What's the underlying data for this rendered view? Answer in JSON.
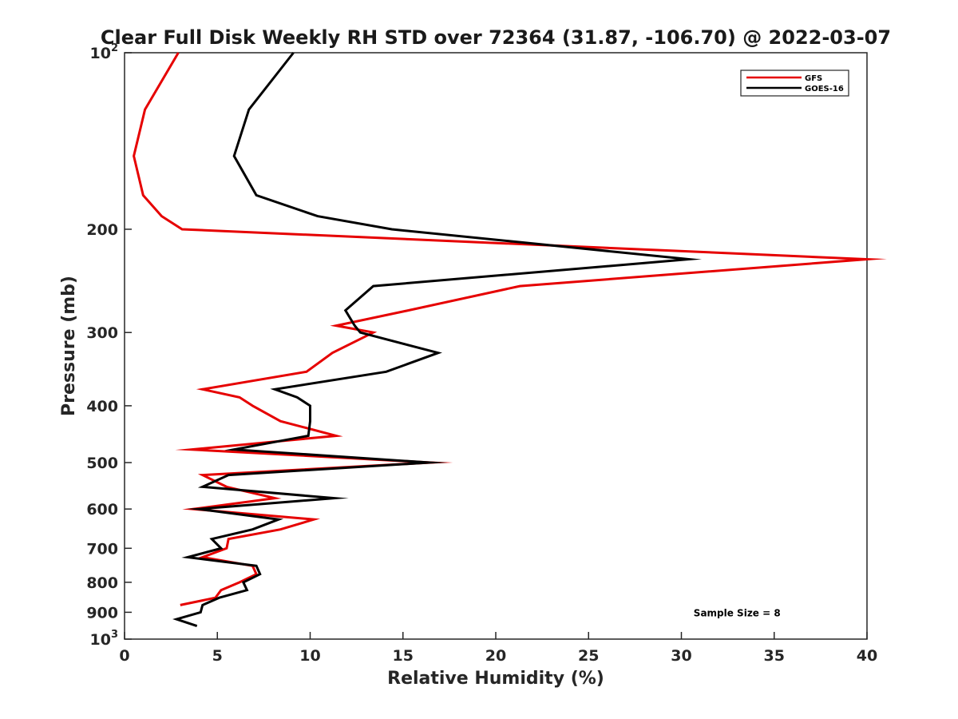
{
  "chart_data": {
    "type": "line",
    "title": "Clear Full Disk Weekly RH STD over 72364 (31.87, -106.70) @ 2022-03-07",
    "xlabel": "Relative Humidity (%)",
    "ylabel": "Pressure (mb)",
    "xlim": [
      0,
      40
    ],
    "ylim": [
      100,
      1000
    ],
    "yscale": "log",
    "y_reversed": true,
    "grid": false,
    "legend_position": "top-right",
    "x_ticks": [
      "0",
      "5",
      "10",
      "15",
      "20",
      "25",
      "30",
      "35",
      "40"
    ],
    "y_ticks": [
      {
        "value": 100,
        "base": "10",
        "exp": "2"
      },
      {
        "value": 200,
        "label": "200"
      },
      {
        "value": 300,
        "label": "300"
      },
      {
        "value": 400,
        "label": "400"
      },
      {
        "value": 500,
        "label": "500"
      },
      {
        "value": 600,
        "label": "600"
      },
      {
        "value": 700,
        "label": "700"
      },
      {
        "value": 800,
        "label": "800"
      },
      {
        "value": 900,
        "label": "900"
      },
      {
        "value": 1000,
        "base": "10",
        "exp": "3"
      }
    ],
    "series": [
      {
        "name": "GFS",
        "color": "#e60000",
        "points": [
          [
            2.9,
            100
          ],
          [
            1.1,
            125
          ],
          [
            0.5,
            150
          ],
          [
            1.0,
            175
          ],
          [
            2.0,
            190
          ],
          [
            3.1,
            200
          ],
          [
            40.0,
            225
          ],
          [
            21.3,
            250
          ],
          [
            15.3,
            275
          ],
          [
            11.4,
            292
          ],
          [
            13.4,
            300
          ],
          [
            11.2,
            325
          ],
          [
            9.8,
            350
          ],
          [
            4.2,
            375
          ],
          [
            6.2,
            387
          ],
          [
            6.9,
            400
          ],
          [
            8.4,
            425
          ],
          [
            11.4,
            450
          ],
          [
            3.6,
            475
          ],
          [
            16.5,
            500
          ],
          [
            4.2,
            525
          ],
          [
            5.5,
            550
          ],
          [
            8.1,
            575
          ],
          [
            3.7,
            600
          ],
          [
            10.2,
            625
          ],
          [
            8.4,
            650
          ],
          [
            5.6,
            675
          ],
          [
            5.5,
            700
          ],
          [
            4.2,
            725
          ],
          [
            6.9,
            750
          ],
          [
            7.1,
            775
          ],
          [
            6.2,
            800
          ],
          [
            5.2,
            825
          ],
          [
            4.9,
            850
          ],
          [
            3.0,
            875
          ]
        ]
      },
      {
        "name": "GOES-16",
        "color": "#000000",
        "points": [
          [
            9.1,
            100
          ],
          [
            6.7,
            125
          ],
          [
            5.9,
            150
          ],
          [
            7.1,
            175
          ],
          [
            10.4,
            190
          ],
          [
            14.4,
            200
          ],
          [
            30.4,
            225
          ],
          [
            13.4,
            250
          ],
          [
            11.9,
            275
          ],
          [
            12.4,
            292
          ],
          [
            12.7,
            300
          ],
          [
            16.9,
            325
          ],
          [
            14.1,
            350
          ],
          [
            8.1,
            375
          ],
          [
            9.3,
            387
          ],
          [
            10.0,
            400
          ],
          [
            10.0,
            425
          ],
          [
            9.9,
            450
          ],
          [
            5.9,
            475
          ],
          [
            16.4,
            500
          ],
          [
            5.6,
            525
          ],
          [
            4.2,
            550
          ],
          [
            11.3,
            575
          ],
          [
            4.0,
            600
          ],
          [
            8.3,
            625
          ],
          [
            6.9,
            650
          ],
          [
            4.7,
            675
          ],
          [
            5.2,
            700
          ],
          [
            3.4,
            725
          ],
          [
            7.1,
            750
          ],
          [
            7.3,
            775
          ],
          [
            6.4,
            800
          ],
          [
            6.6,
            825
          ],
          [
            5.1,
            850
          ],
          [
            4.2,
            875
          ],
          [
            4.1,
            900
          ],
          [
            2.8,
            925
          ],
          [
            3.9,
            950
          ]
        ]
      }
    ],
    "annotations": [
      {
        "text": "Sample Size = 8",
        "x": 33,
        "y": 900
      }
    ]
  }
}
